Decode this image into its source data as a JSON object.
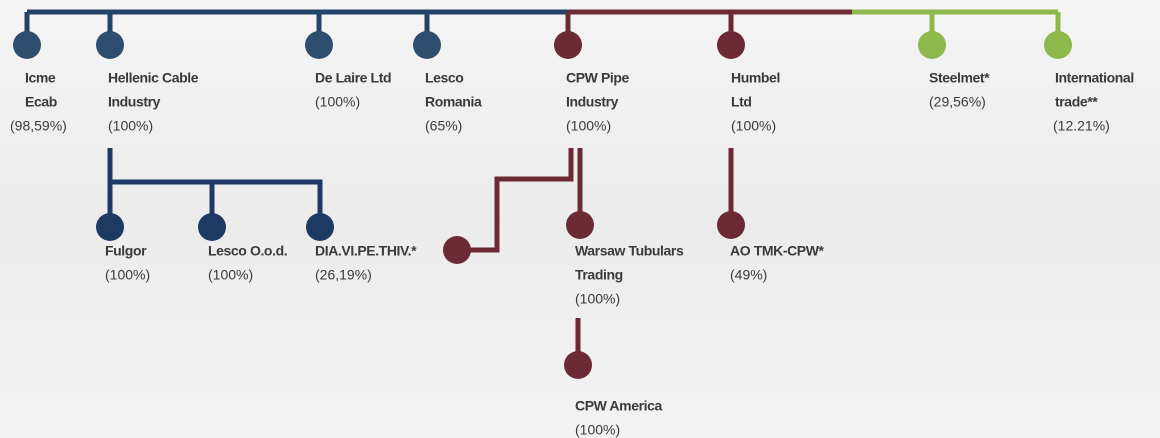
{
  "nodes": [
    {
      "name": [
        "Icme",
        "Ecab"
      ],
      "share": "(98,59%)"
    },
    {
      "name": [
        "Hellenic Cable",
        "Industry"
      ],
      "share": "(100%)"
    },
    {
      "name": [
        "De Laire Ltd"
      ],
      "share": "(100%)"
    },
    {
      "name": [
        "Lesco",
        "Romania"
      ],
      "share": "(65%)"
    },
    {
      "name": [
        "CPW Pipe",
        "Industry"
      ],
      "share": "(100%)"
    },
    {
      "name": [
        "Humbel",
        "Ltd"
      ],
      "share": "(100%)"
    },
    {
      "name": [
        "Steelmet*"
      ],
      "share": "(29,56%)"
    },
    {
      "name": [
        "International",
        "trade**"
      ],
      "share": "(12.21%)"
    },
    {
      "name": [
        "Fulgor"
      ],
      "share": "(100%)"
    },
    {
      "name": [
        "Lesco O.o.d."
      ],
      "share": "(100%)"
    },
    {
      "name": [
        "DIA.VI.PE.THIV.*"
      ],
      "share": "(26,19%)"
    },
    {
      "name": [
        "Warsaw Tubulars",
        "Trading"
      ],
      "share": "(100%)"
    },
    {
      "name": [
        "AO TMK-CPW*"
      ],
      "share": "(49%)"
    },
    {
      "name": [
        "CPW America"
      ],
      "share": "(100%)"
    }
  ]
}
